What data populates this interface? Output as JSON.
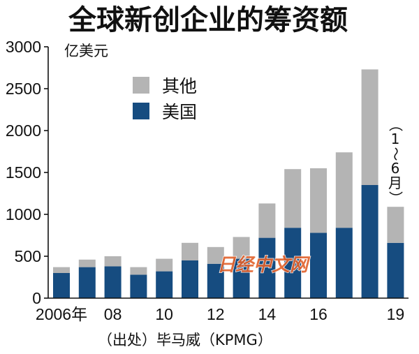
{
  "chart_data": {
    "type": "bar",
    "stacked": true,
    "title": "全球新创企业的筹资额",
    "ylabel": "亿美元",
    "ylim": [
      0,
      3000
    ],
    "yticks": [
      0,
      500,
      1000,
      1500,
      2000,
      2500,
      3000
    ],
    "grid": false,
    "x": [
      2006,
      2007,
      2008,
      2009,
      2010,
      2011,
      2012,
      2013,
      2014,
      2015,
      2016,
      2017,
      2018,
      2019
    ],
    "xticks": [
      {
        "x": 2006,
        "label": "2006年"
      },
      {
        "x": 2008,
        "label": "08"
      },
      {
        "x": 2010,
        "label": "10"
      },
      {
        "x": 2012,
        "label": "12"
      },
      {
        "x": 2014,
        "label": "14"
      },
      {
        "x": 2016,
        "label": "16"
      },
      {
        "x": 2019,
        "label": "19"
      }
    ],
    "series": [
      {
        "name": "美国",
        "color": "#164c80",
        "values": [
          300,
          370,
          380,
          280,
          320,
          450,
          410,
          470,
          720,
          840,
          780,
          840,
          1350,
          660
        ]
      },
      {
        "name": "其他",
        "color": "#b4b4b4",
        "values": [
          70,
          90,
          120,
          90,
          150,
          210,
          200,
          260,
          410,
          700,
          770,
          900,
          1380,
          430
        ]
      }
    ],
    "legend_position": "top-left",
    "annotation": "（1～6月）"
  },
  "source": "（出处）毕马威（KPMG）",
  "watermark": "日经中文网"
}
